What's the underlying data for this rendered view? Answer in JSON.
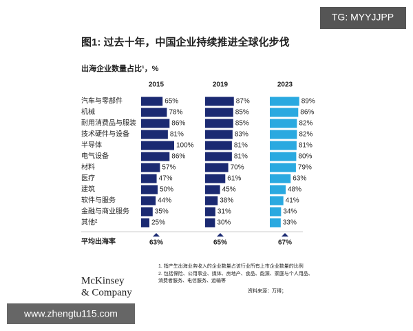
{
  "watermark_top": "TG: MYYJJPP",
  "watermark_bottom": "www.zhengtu115.com",
  "title": "图1: 过去十年，中国企业持续推进全球化步伐",
  "subtitle": "出海企业数量占比¹，%",
  "average_label": "平均出海率",
  "footnotes": [
    "1.  指产生出海业务收入的企业数量占该行业所有上市企业数量的比例",
    "2.  包括保险、公用事业、媒体、房地产、食品、能源、家庭与个人用品、",
    "     消费者服务、电信服务、运输等"
  ],
  "source": "资料来源：万得；",
  "logo": [
    "McKinsey",
    "& Company"
  ],
  "chart_data": {
    "type": "bar",
    "categories": [
      "汽车与零部件",
      "机械",
      "耐用消费品与服装",
      "技术硬件与设备",
      "半导体",
      "电气设备",
      "材料",
      "医疗",
      "建筑",
      "软件与服务",
      "金融与商业服务",
      "其他²"
    ],
    "xlim": [
      0,
      100
    ],
    "series": [
      {
        "name": "2015",
        "color": "#1b2a72",
        "values": [
          65,
          78,
          86,
          81,
          100,
          86,
          57,
          47,
          50,
          44,
          35,
          25
        ],
        "value_labels": [
          "65%",
          "78%",
          "86%",
          "81%",
          "100%",
          "86%",
          "57%",
          "47%",
          "50%",
          "44%",
          "35%",
          "25%"
        ],
        "average": 63,
        "average_label": "63%"
      },
      {
        "name": "2019",
        "color": "#1b2a72",
        "values": [
          87,
          85,
          85,
          83,
          81,
          81,
          70,
          61,
          45,
          38,
          31,
          30
        ],
        "value_labels": [
          "87%",
          "85%",
          "85%",
          "83%",
          "81%",
          "81%",
          "70%",
          "61%",
          "45%",
          "38%",
          "31%",
          "30%"
        ],
        "average": 65,
        "average_label": "65%"
      },
      {
        "name": "2023",
        "color": "#2aa9e0",
        "values": [
          89,
          86,
          82,
          82,
          81,
          80,
          79,
          63,
          48,
          41,
          34,
          33
        ],
        "value_labels": [
          "89%",
          "86%",
          "82%",
          "82%",
          "81%",
          "80%",
          "79%",
          "63%",
          "48%",
          "41%",
          "34%",
          "33%"
        ],
        "average": 67,
        "average_label": "67%"
      }
    ]
  }
}
